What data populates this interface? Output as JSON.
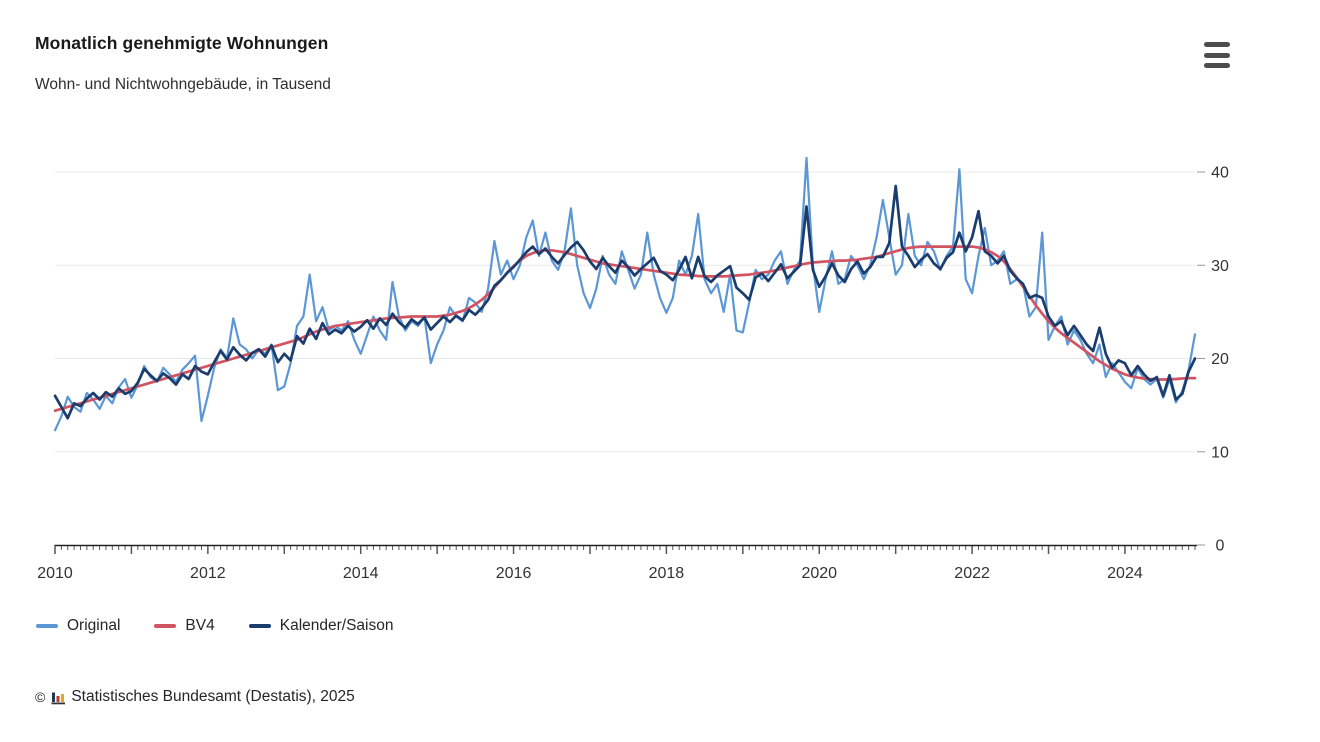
{
  "header": {
    "title": "Monatlich genehmigte Wohnungen",
    "subtitle": "Wohn- und Nichtwohngebäude, in Tausend"
  },
  "menu": {
    "icon": "hamburger-menu-icon",
    "tooltip": "Menü"
  },
  "chart_data": {
    "type": "line",
    "title": "Monatlich genehmigte Wohnungen",
    "subtitle": "Wohn- und Nichtwohngebäude, in Tausend",
    "unit": "Tausend",
    "frequency": "monthly",
    "x_start": "2010-01",
    "x_end": "2024-12",
    "x_tick_labels": [
      "2010",
      "2012",
      "2014",
      "2016",
      "2018",
      "2020",
      "2022",
      "2024"
    ],
    "y_ticks": [
      0,
      10,
      20,
      30,
      40
    ],
    "ylim": [
      0,
      42
    ],
    "grid": "horizontal",
    "legend_position": "bottom-left",
    "colors": {
      "grid": "#e8e8e8",
      "axis": "#222222",
      "tick": "#555555",
      "label": "#333333"
    },
    "series": [
      {
        "name": "Original",
        "color": "#5b97d5",
        "values": [
          12.3,
          13.8,
          15.9,
          14.8,
          14.3,
          16.3,
          15.6,
          14.6,
          16.0,
          15.2,
          16.9,
          17.8,
          15.8,
          17.2,
          19.2,
          18.0,
          17.5,
          19.0,
          18.3,
          17.5,
          18.8,
          19.5,
          20.3,
          13.3,
          16.0,
          19.0,
          21.0,
          20.0,
          24.3,
          21.5,
          21.0,
          20.0,
          21.0,
          20.5,
          21.5,
          16.6,
          17.0,
          19.5,
          23.5,
          24.5,
          29.0,
          24.0,
          25.5,
          23.0,
          23.5,
          23.0,
          24.0,
          22.0,
          20.5,
          22.5,
          24.5,
          23.0,
          22.0,
          28.2,
          24.5,
          23.0,
          24.0,
          23.5,
          24.5,
          19.5,
          21.5,
          23.0,
          25.5,
          24.5,
          24.0,
          26.5,
          26.0,
          25.0,
          27.5,
          32.6,
          29.0,
          30.5,
          28.5,
          30.0,
          33.0,
          34.8,
          31.0,
          33.5,
          30.5,
          29.5,
          31.5,
          36.1,
          30.0,
          27.0,
          25.4,
          27.5,
          31.0,
          29.0,
          28.0,
          31.5,
          29.5,
          27.5,
          29.0,
          33.5,
          29.0,
          26.5,
          24.9,
          26.5,
          30.5,
          29.0,
          31.0,
          35.5,
          28.5,
          27.0,
          28.0,
          25.0,
          29.0,
          23.0,
          22.8,
          26.0,
          29.5,
          28.5,
          29.0,
          30.5,
          31.5,
          28.0,
          29.5,
          30.5,
          41.5,
          30.0,
          25.0,
          28.5,
          31.5,
          28.0,
          28.5,
          31.0,
          30.0,
          28.5,
          30.0,
          33.0,
          37.0,
          33.0,
          29.0,
          30.0,
          35.5,
          31.0,
          30.0,
          32.5,
          31.5,
          29.5,
          31.0,
          32.0,
          40.3,
          28.5,
          27.0,
          31.0,
          34.0,
          30.0,
          30.5,
          31.5,
          28.0,
          28.5,
          28.0,
          24.5,
          25.5,
          33.5,
          22.0,
          23.5,
          24.5,
          21.5,
          23.0,
          22.0,
          20.5,
          19.5,
          21.5,
          18.0,
          19.5,
          18.5,
          17.5,
          16.8,
          19.0,
          17.8,
          17.2,
          17.8,
          15.8,
          17.8,
          15.3,
          16.5,
          18.8,
          22.6
        ]
      },
      {
        "name": "BV4",
        "color": "#d25463",
        "values": [
          14.4,
          14.6,
          14.8,
          15.0,
          15.2,
          15.4,
          15.6,
          15.8,
          16.0,
          16.2,
          16.4,
          16.6,
          16.8,
          17.0,
          17.2,
          17.4,
          17.6,
          17.8,
          18.0,
          18.2,
          18.4,
          18.6,
          18.8,
          19.0,
          19.2,
          19.4,
          19.6,
          19.8,
          20.0,
          20.2,
          20.4,
          20.6,
          20.8,
          21.0,
          21.2,
          21.4,
          21.6,
          21.8,
          22.0,
          22.3,
          22.6,
          22.9,
          23.1,
          23.3,
          23.5,
          23.6,
          23.7,
          23.8,
          23.9,
          24.0,
          24.1,
          24.2,
          24.3,
          24.35,
          24.4,
          24.45,
          24.5,
          24.5,
          24.5,
          24.5,
          24.5,
          24.6,
          24.7,
          24.9,
          25.1,
          25.4,
          25.8,
          26.3,
          26.9,
          27.6,
          28.4,
          29.2,
          29.9,
          30.5,
          31.0,
          31.3,
          31.5,
          31.6,
          31.6,
          31.5,
          31.4,
          31.2,
          31.0,
          30.8,
          30.6,
          30.4,
          30.2,
          30.1,
          30.0,
          29.9,
          29.8,
          29.7,
          29.6,
          29.5,
          29.4,
          29.3,
          29.2,
          29.1,
          29.0,
          28.95,
          28.9,
          28.85,
          28.8,
          28.8,
          28.8,
          28.8,
          28.85,
          28.9,
          28.95,
          29.0,
          29.1,
          29.2,
          29.3,
          29.45,
          29.6,
          29.75,
          29.9,
          30.05,
          30.2,
          30.3,
          30.35,
          30.4,
          30.45,
          30.5,
          30.5,
          30.55,
          30.6,
          30.7,
          30.8,
          30.9,
          31.1,
          31.3,
          31.5,
          31.7,
          31.85,
          31.95,
          32.0,
          32.0,
          32.0,
          32.0,
          32.0,
          32.0,
          32.0,
          32.0,
          32.0,
          31.9,
          31.7,
          31.4,
          31.0,
          30.4,
          29.6,
          28.7,
          27.7,
          26.7,
          25.7,
          24.8,
          24.0,
          23.3,
          22.7,
          22.2,
          21.7,
          21.2,
          20.7,
          20.2,
          19.7,
          19.3,
          18.9,
          18.6,
          18.3,
          18.1,
          17.95,
          17.85,
          17.8,
          17.75,
          17.75,
          17.75,
          17.8,
          17.85,
          17.9,
          17.9
        ]
      },
      {
        "name": "Kalender/Saison",
        "color": "#1a3d6d",
        "values": [
          16.0,
          14.8,
          13.6,
          15.2,
          14.9,
          15.7,
          16.3,
          15.6,
          16.4,
          15.9,
          16.8,
          16.2,
          16.5,
          17.4,
          18.9,
          18.2,
          17.6,
          18.4,
          17.9,
          17.2,
          18.3,
          17.8,
          19.2,
          18.6,
          18.3,
          19.6,
          20.8,
          19.9,
          21.2,
          20.4,
          19.8,
          20.6,
          21.0,
          20.2,
          21.4,
          19.6,
          20.5,
          19.8,
          22.4,
          21.6,
          23.2,
          22.1,
          23.8,
          22.6,
          23.1,
          22.7,
          23.5,
          22.9,
          23.4,
          24.1,
          23.2,
          24.3,
          23.6,
          24.8,
          23.9,
          23.3,
          24.2,
          23.7,
          24.4,
          23.1,
          23.8,
          24.5,
          23.9,
          24.6,
          24.1,
          25.2,
          24.7,
          25.4,
          26.3,
          27.8,
          28.4,
          29.2,
          29.8,
          30.6,
          31.4,
          32.0,
          31.2,
          31.8,
          30.9,
          30.2,
          31.1,
          31.9,
          32.5,
          31.6,
          30.4,
          29.6,
          30.8,
          29.9,
          29.2,
          30.5,
          29.8,
          28.9,
          29.6,
          30.2,
          30.8,
          29.4,
          29.0,
          28.4,
          29.5,
          30.9,
          28.6,
          30.9,
          28.8,
          28.2,
          28.9,
          29.4,
          29.9,
          27.6,
          27.0,
          26.3,
          28.7,
          29.1,
          28.3,
          29.2,
          30.1,
          28.6,
          29.3,
          30.0,
          36.3,
          29.5,
          27.7,
          28.8,
          30.2,
          28.9,
          28.2,
          29.6,
          30.4,
          29.1,
          29.8,
          30.9,
          30.9,
          32.4,
          38.5,
          32.0,
          31.0,
          29.8,
          30.6,
          31.2,
          30.2,
          29.6,
          30.8,
          31.4,
          33.5,
          31.5,
          33.0,
          35.8,
          31.5,
          31.0,
          30.2,
          31.0,
          29.4,
          28.6,
          28.0,
          26.5,
          26.8,
          26.5,
          24.5,
          23.5,
          24.0,
          22.5,
          23.5,
          22.5,
          21.5,
          20.8,
          23.3,
          20.5,
          19.0,
          19.8,
          19.5,
          18.2,
          19.2,
          18.3,
          17.6,
          18.0,
          16.0,
          18.2,
          15.6,
          16.2,
          18.6,
          20.0
        ]
      }
    ]
  },
  "footer": {
    "copyright": "©",
    "logo": "destatis-bar-chart-icon",
    "source": "Statistisches Bundesamt (Destatis), 2025"
  }
}
